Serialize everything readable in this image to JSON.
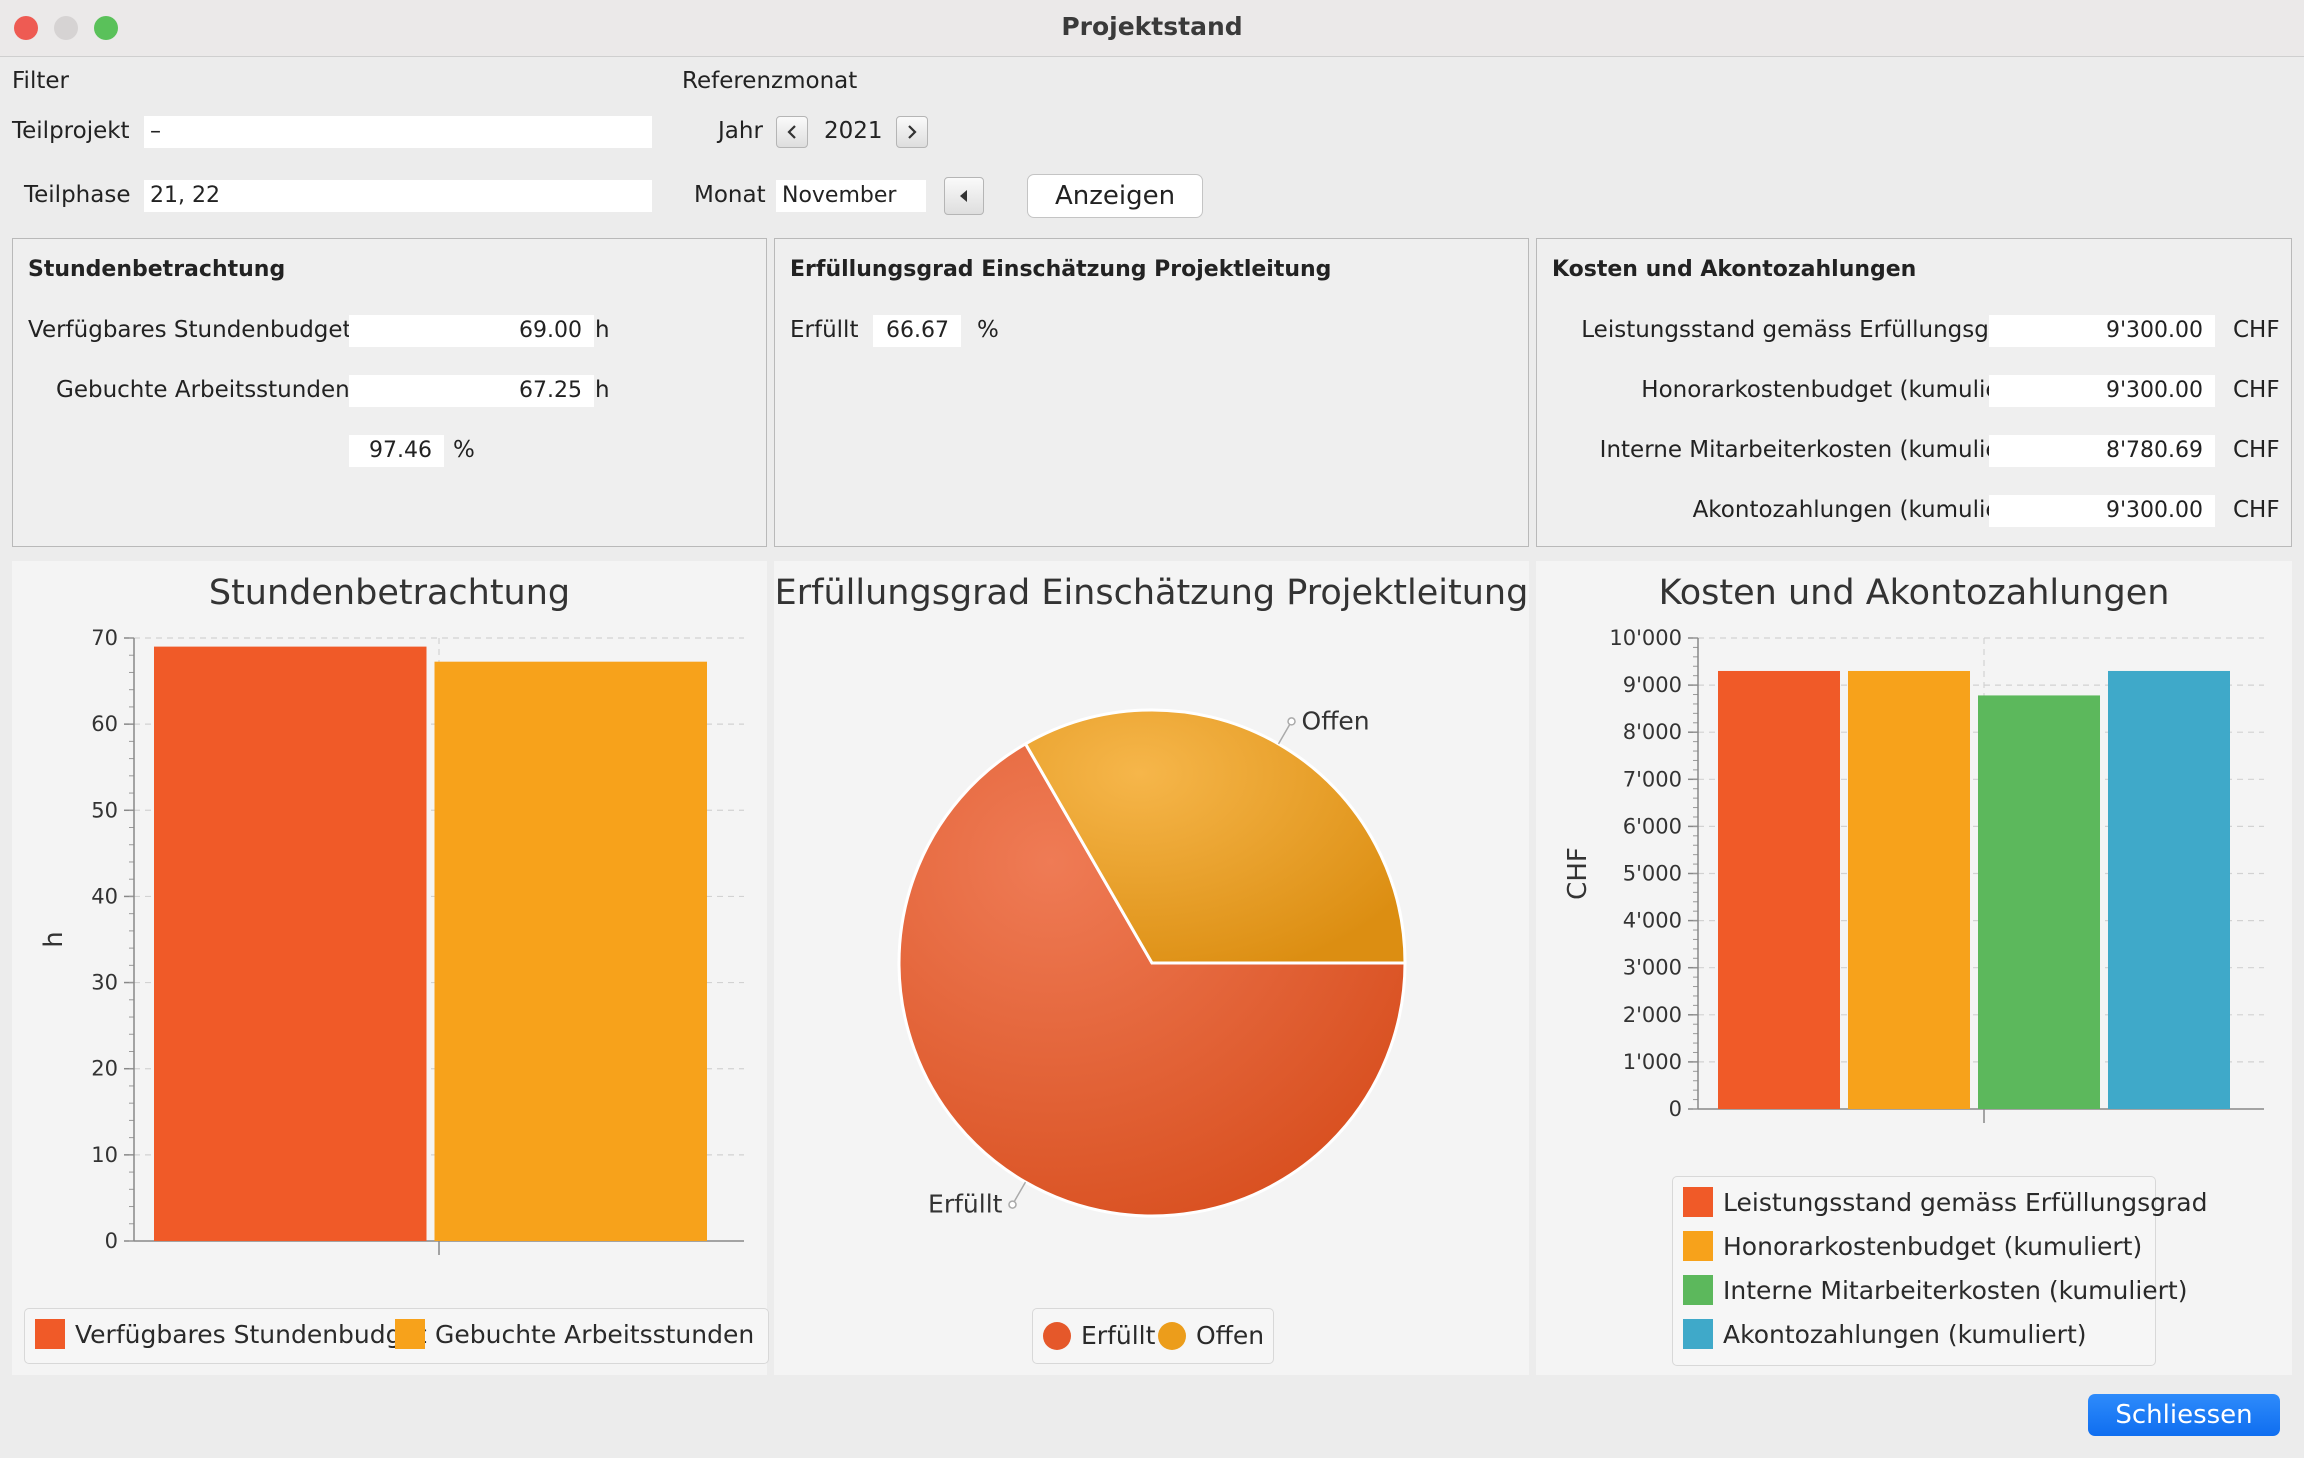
{
  "window": {
    "title": "Projektstand"
  },
  "colors": {
    "orange_red": "#f05a28",
    "orange": "#f7a21b",
    "green": "#5cb85c",
    "blue": "#3fa9c9",
    "accent": "#1578f5"
  },
  "filter": {
    "label": "Filter",
    "teilprojekt_label": "Teilprojekt",
    "teilprojekt_value": "–",
    "teilphase_label": "Teilphase",
    "teilphase_value": "21, 22"
  },
  "referenz": {
    "label": "Referenzmonat",
    "jahr_label": "Jahr",
    "jahr_value": "2021",
    "monat_label": "Monat",
    "monat_value": "November",
    "anzeigen_label": "Anzeigen"
  },
  "stunden_panel": {
    "title": "Stundenbetrachtung",
    "budget_label": "Verfügbares Stundenbudget",
    "budget_value": "69.00",
    "budget_unit": "h",
    "gebucht_label": "Gebuchte Arbeitsstunden",
    "gebucht_value": "67.25",
    "gebucht_unit": "h",
    "percent_value": "97.46",
    "percent_unit": "%"
  },
  "erfuellung_panel": {
    "title": "Erfüllungsgrad Einschätzung Projektleitung",
    "erfuellt_label": "Erfüllt",
    "erfuellt_value": "66.67",
    "erfuellt_unit": "%"
  },
  "kosten_panel": {
    "title": "Kosten und Akontozahlungen",
    "rows": [
      {
        "label": "Leistungsstand gemäss Erfüllungsgrad",
        "value": "9'300.00",
        "unit": "CHF"
      },
      {
        "label": "Honorarkostenbudget (kumuliert)",
        "value": "9'300.00",
        "unit": "CHF"
      },
      {
        "label": "Interne Mitarbeiterkosten (kumuliert)",
        "value": "8'780.69",
        "unit": "CHF"
      },
      {
        "label": "Akontozahlungen (kumuliert)",
        "value": "9'300.00",
        "unit": "CHF"
      }
    ]
  },
  "chart_data": [
    {
      "type": "bar",
      "title": "Stundenbetrachtung",
      "ylabel": "h",
      "ylim": [
        0,
        70
      ],
      "yticks": [
        "0",
        "10",
        "20",
        "30",
        "40",
        "50",
        "60",
        "70"
      ],
      "series": [
        {
          "name": "Verfügbares Stundenbudget",
          "values": [
            69.0
          ]
        },
        {
          "name": "Gebuchte Arbeitsstunden",
          "values": [
            67.25
          ]
        }
      ],
      "legend": "bottom",
      "grid": true
    },
    {
      "type": "pie",
      "title": "Erfüllungsgrad Einschätzung Projektleitung",
      "slices": [
        {
          "name": "Erfüllt",
          "value": 66.67
        },
        {
          "name": "Offen",
          "value": 33.33
        }
      ],
      "legend": "bottom"
    },
    {
      "type": "bar",
      "title": "Kosten und Akontozahlungen",
      "ylabel": "CHF",
      "ylim": [
        0,
        10000
      ],
      "yticks": [
        "0",
        "1'000",
        "2'000",
        "3'000",
        "4'000",
        "5'000",
        "6'000",
        "7'000",
        "8'000",
        "9'000",
        "10'000"
      ],
      "series": [
        {
          "name": "Leistungsstand gemäss Erfüllungsgrad",
          "values": [
            9300.0
          ]
        },
        {
          "name": "Honorarkostenbudget (kumuliert)",
          "values": [
            9300.0
          ]
        },
        {
          "name": "Interne Mitarbeiterkosten (kumuliert)",
          "values": [
            8780.69
          ]
        },
        {
          "name": "Akontozahlungen (kumuliert)",
          "values": [
            9300.0
          ]
        }
      ],
      "legend": "bottom",
      "grid": true
    }
  ],
  "footer": {
    "close_label": "Schliessen"
  }
}
